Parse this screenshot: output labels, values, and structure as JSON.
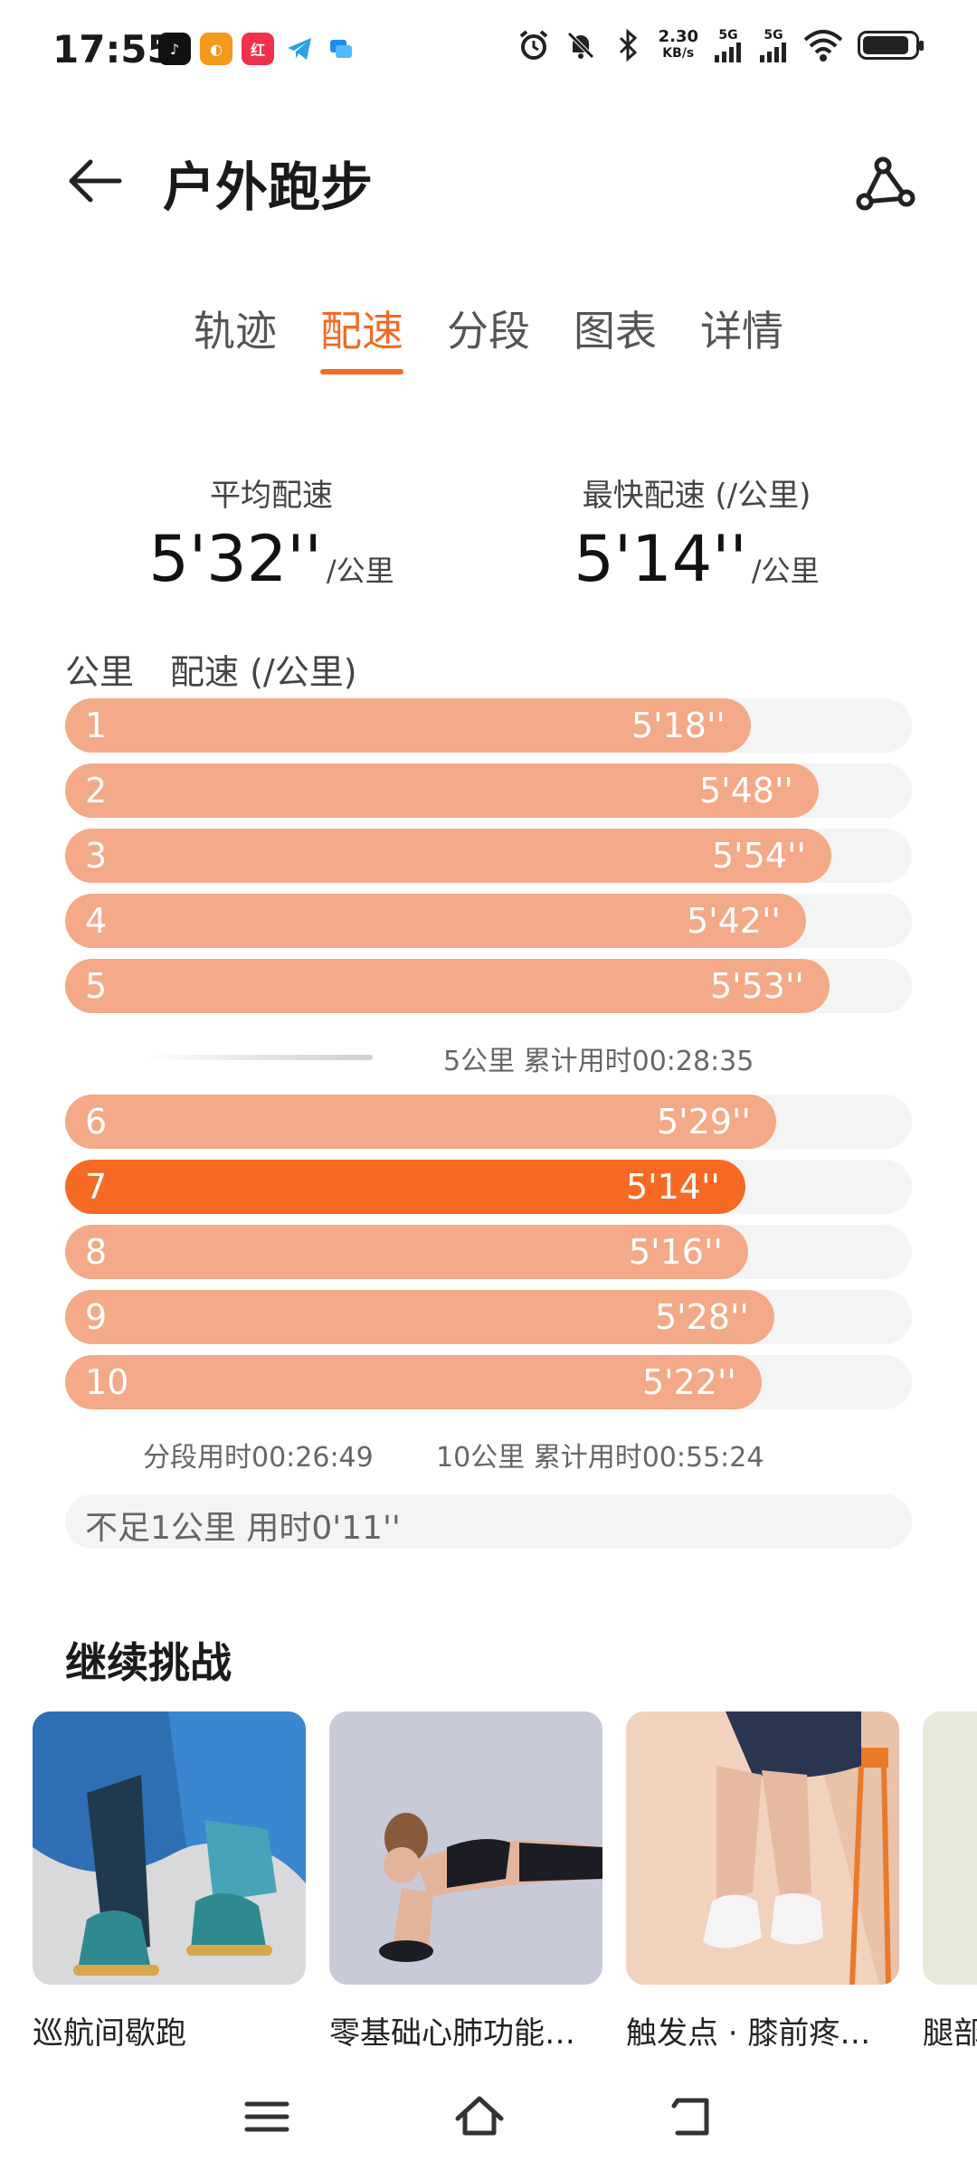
{
  "status": {
    "time": "17:55",
    "net_speed_top": "2.30",
    "net_speed_bottom": "KB/s",
    "sig1": "5G",
    "sig2": "5G",
    "app_icons": [
      "douyin-icon",
      "app-orange-icon",
      "xiaohongshu-icon",
      "telegram-icon",
      "message-icon"
    ]
  },
  "header": {
    "title": "户外跑步"
  },
  "tabs": [
    {
      "label": "轨迹",
      "active": false
    },
    {
      "label": "配速",
      "active": true
    },
    {
      "label": "分段",
      "active": false
    },
    {
      "label": "图表",
      "active": false
    },
    {
      "label": "详情",
      "active": false
    }
  ],
  "stats": {
    "avg_label": "平均配速",
    "avg_value": "5'32''",
    "avg_unit": "/公里",
    "fast_label": "最快配速 (/公里)",
    "fast_value": "5'14''",
    "fast_unit": "/公里"
  },
  "pace_list": {
    "col_km": "公里",
    "col_pace": "配速 (/公里)",
    "rows": [
      {
        "km": "1",
        "pace": "5'18''",
        "fraction": 0.81
      },
      {
        "km": "2",
        "pace": "5'48''",
        "fraction": 0.89
      },
      {
        "km": "3",
        "pace": "5'54''",
        "fraction": 0.905
      },
      {
        "km": "4",
        "pace": "5'42''",
        "fraction": 0.875
      },
      {
        "km": "5",
        "pace": "5'53''",
        "fraction": 0.903
      },
      {
        "km": "6",
        "pace": "5'29''",
        "fraction": 0.84
      },
      {
        "km": "7",
        "pace": "5'14''",
        "fraction": 0.803,
        "fastest": true
      },
      {
        "km": "8",
        "pace": "5'16''",
        "fraction": 0.807
      },
      {
        "km": "9",
        "pace": "5'28''",
        "fraction": 0.838
      },
      {
        "km": "10",
        "pace": "5'22''",
        "fraction": 0.823
      }
    ],
    "note1": "5公里 累计用时00:28:35",
    "note2_segment": "分段用时00:26:49",
    "note2_total": "10公里 累计用时00:55:24",
    "short_label": "不足1公里 用时0'11''"
  },
  "challenge": {
    "title": "继续挑战",
    "cards": [
      {
        "label": "巡航间歇跑"
      },
      {
        "label": "零基础心肺功能…"
      },
      {
        "label": "触发点 · 膝前疼…"
      },
      {
        "label": "腿部"
      }
    ]
  },
  "colors": {
    "accent": "#f06b23",
    "bar": "#f4a988",
    "bar_fastest": "#f66a23",
    "track": "#f4f4f4"
  }
}
